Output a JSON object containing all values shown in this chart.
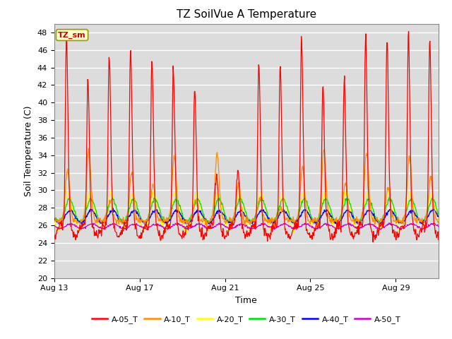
{
  "title": "TZ SoilVue A Temperature",
  "xlabel": "Time",
  "ylabel": "Soil Temperature (C)",
  "ylim": [
    20,
    49
  ],
  "yticks": [
    20,
    22,
    24,
    26,
    28,
    30,
    32,
    34,
    36,
    38,
    40,
    42,
    44,
    46,
    48
  ],
  "fig_bg_color": "#ffffff",
  "plot_bg_color": "#dcdcdc",
  "legend_label": "TZ_sm",
  "series_colors": {
    "A-05_T": "#ff0000",
    "A-10_T": "#ff8c00",
    "A-20_T": "#ffff00",
    "A-30_T": "#00dd00",
    "A-40_T": "#0000ee",
    "A-50_T": "#cc00cc"
  },
  "x_tick_days": [
    13,
    17,
    21,
    25,
    29
  ],
  "n_days": 18
}
